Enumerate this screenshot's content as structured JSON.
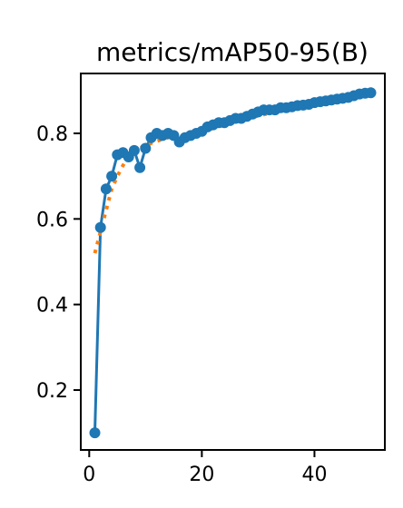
{
  "chart_data": {
    "type": "line",
    "title": "metrics/mAP50-95(B)",
    "xlabel": "",
    "ylabel": "",
    "xlim": [
      -1.5,
      52.5
    ],
    "ylim": [
      0.06,
      0.94
    ],
    "xticks": [
      0,
      20,
      40
    ],
    "yticks": [
      0.2,
      0.4,
      0.6,
      0.8
    ],
    "ytick_labels": [
      "0.2",
      "0.4",
      "0.6",
      "0.8"
    ],
    "grid": false,
    "series": [
      {
        "role": "data",
        "color": "#1f77b4",
        "marker": "circle",
        "line_style": "solid",
        "x": [
          1,
          2,
          3,
          4,
          5,
          6,
          7,
          8,
          9,
          10,
          11,
          12,
          13,
          14,
          15,
          16,
          17,
          18,
          19,
          20,
          21,
          22,
          23,
          24,
          25,
          26,
          27,
          28,
          29,
          30,
          31,
          32,
          33,
          34,
          35,
          36,
          37,
          38,
          39,
          40,
          41,
          42,
          43,
          44,
          45,
          46,
          47,
          48,
          49,
          50
        ],
        "y": [
          0.1,
          0.58,
          0.67,
          0.7,
          0.75,
          0.755,
          0.745,
          0.76,
          0.72,
          0.765,
          0.79,
          0.8,
          0.795,
          0.8,
          0.795,
          0.78,
          0.79,
          0.795,
          0.8,
          0.805,
          0.815,
          0.82,
          0.825,
          0.825,
          0.83,
          0.835,
          0.835,
          0.84,
          0.845,
          0.85,
          0.855,
          0.855,
          0.855,
          0.86,
          0.86,
          0.862,
          0.865,
          0.866,
          0.868,
          0.872,
          0.874,
          0.876,
          0.878,
          0.88,
          0.882,
          0.884,
          0.888,
          0.892,
          0.894,
          0.895
        ]
      },
      {
        "role": "smooth",
        "color": "#ff7f0e",
        "line_style": "dotted",
        "x": [
          1,
          2,
          3,
          4,
          5,
          6,
          7,
          8,
          9,
          10,
          12,
          14,
          16,
          18,
          20,
          22,
          24,
          26,
          28,
          30,
          32,
          34,
          36,
          38,
          40,
          42,
          44,
          46,
          48,
          50
        ],
        "y": [
          0.52,
          0.57,
          0.62,
          0.67,
          0.7,
          0.725,
          0.745,
          0.757,
          0.765,
          0.772,
          0.782,
          0.79,
          0.795,
          0.8,
          0.805,
          0.812,
          0.82,
          0.827,
          0.834,
          0.841,
          0.847,
          0.853,
          0.859,
          0.864,
          0.869,
          0.874,
          0.879,
          0.884,
          0.889,
          0.893
        ]
      }
    ]
  }
}
